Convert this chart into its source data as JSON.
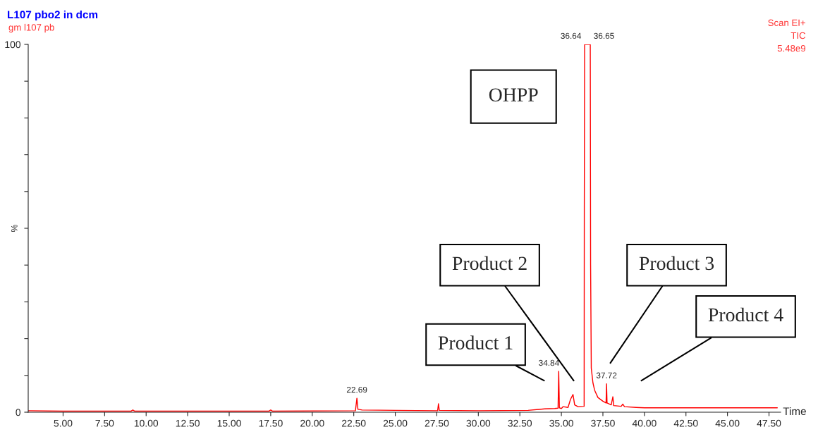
{
  "chart_data": {
    "type": "line",
    "title": "L107 pbo2 in dcm",
    "subtitle": "gm l107 pb",
    "xlabel": "Time",
    "ylabel": "%",
    "x": [
      2.9,
      5,
      9.1,
      9.2,
      9.3,
      12,
      17.4,
      17.5,
      17.6,
      22.6,
      22.69,
      22.75,
      23,
      25,
      27.55,
      27.6,
      27.65,
      30,
      33,
      34,
      34.6,
      34.8,
      34.84,
      34.88,
      35.0,
      35.1,
      35.4,
      35.55,
      35.7,
      35.8,
      36.0,
      36.35,
      36.37,
      36.38,
      36.4,
      36.74,
      36.76,
      36.78,
      36.8,
      36.9,
      37.0,
      37.2,
      37.5,
      37.69,
      37.72,
      37.75,
      38.0,
      38.1,
      38.15,
      38.6,
      38.7,
      38.8,
      39.5,
      40,
      45,
      48.0
    ],
    "series": [
      {
        "color": "#ff0000",
        "values": [
          0.4,
          0.3,
          0.3,
          0.6,
          0.3,
          0.3,
          0.3,
          0.6,
          0.3,
          0.4,
          3.8,
          0.8,
          0.6,
          0.5,
          0.4,
          2.3,
          0.5,
          0.4,
          0.5,
          0.9,
          1.0,
          1.1,
          11.1,
          1.2,
          1.0,
          1.5,
          1.3,
          3.5,
          4.8,
          2.0,
          1.5,
          1.6,
          1.6,
          55,
          100,
          100,
          40,
          26,
          12,
          8,
          6,
          4,
          3,
          2.5,
          7.7,
          2.5,
          2,
          4.2,
          1.8,
          1.6,
          2.2,
          1.5,
          1.3,
          1.2,
          1.2,
          1.2
        ]
      }
    ],
    "xlim": [
      2.9,
      48.2
    ],
    "ylim": [
      0,
      100
    ],
    "xticks": [
      {
        "value": 5,
        "label": "5.00"
      },
      {
        "value": 7.5,
        "label": "7.50"
      },
      {
        "value": 10,
        "label": "10.00"
      },
      {
        "value": 12.5,
        "label": "12.50"
      },
      {
        "value": 15,
        "label": "15.00"
      },
      {
        "value": 17.5,
        "label": "17.50"
      },
      {
        "value": 20,
        "label": "20.00"
      },
      {
        "value": 22.5,
        "label": "22.50"
      },
      {
        "value": 25,
        "label": "25.00"
      },
      {
        "value": 27.5,
        "label": "27.50"
      },
      {
        "value": 30,
        "label": "30.00"
      },
      {
        "value": 32.5,
        "label": "32.50"
      },
      {
        "value": 35,
        "label": "35.00"
      },
      {
        "value": 37.5,
        "label": "37.50"
      },
      {
        "value": 40,
        "label": "40.00"
      },
      {
        "value": 42.5,
        "label": "42.50"
      },
      {
        "value": 45,
        "label": "45.00"
      },
      {
        "value": 47.5,
        "label": "47.50"
      }
    ],
    "yticks": [
      0,
      {
        "value": 10,
        "label": null
      },
      {
        "value": 20,
        "label": null
      },
      {
        "value": 30,
        "label": null
      },
      {
        "value": 40,
        "label": null
      },
      {
        "value": 50,
        "label": null
      },
      {
        "value": 60,
        "label": null
      },
      {
        "value": 70,
        "label": null
      },
      {
        "value": 80,
        "label": null
      },
      {
        "value": 90,
        "label": null
      },
      100
    ],
    "grid": false,
    "legend": false,
    "marker": "none",
    "line_style": "solid",
    "annotations": [
      {
        "text": "22.69",
        "x": 22.69,
        "y": 3.8
      },
      {
        "text": "34.84",
        "x": 34.84,
        "y": 11.1
      },
      {
        "text": "36.64",
        "x": 36.4,
        "y": 100
      },
      {
        "text": "36.65",
        "x": 36.74,
        "y": 100
      },
      {
        "text": "37.72",
        "x": 37.72,
        "y": 7.7
      },
      "Scan EI+",
      "TIC",
      "5.48e9",
      "OHPP",
      "Product 1",
      "Product 2",
      "Product 3",
      "Product 4"
    ]
  }
}
